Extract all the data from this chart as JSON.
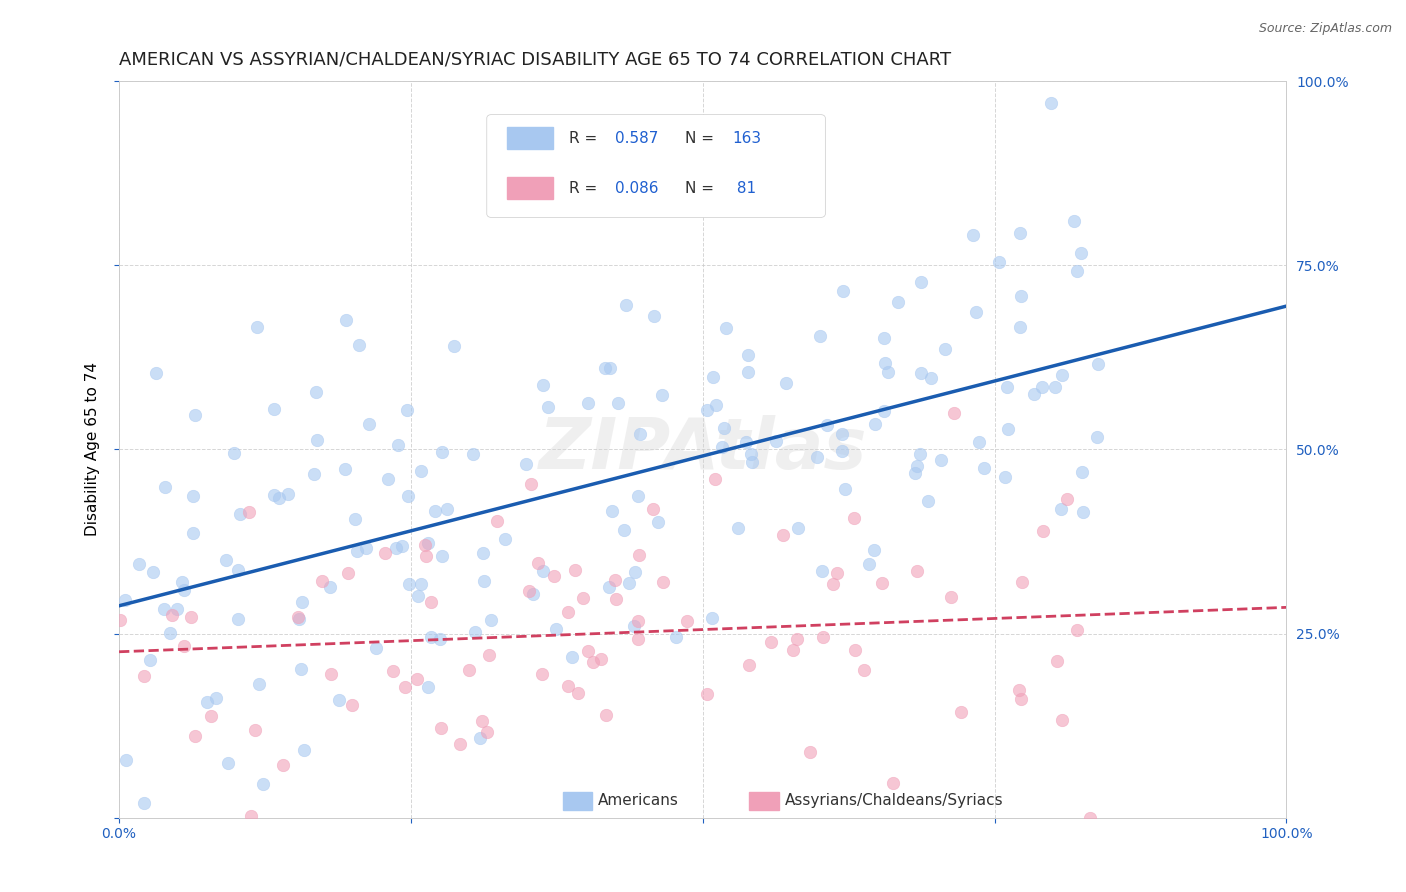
{
  "title": "AMERICAN VS ASSYRIAN/CHALDEAN/SYRIAC DISABILITY AGE 65 TO 74 CORRELATION CHART",
  "source": "Source: ZipAtlas.com",
  "xlabel": "",
  "ylabel": "Disability Age 65 to 74",
  "xlim": [
    0.0,
    1.0
  ],
  "ylim": [
    0.0,
    1.0
  ],
  "xticks": [
    0.0,
    0.25,
    0.5,
    0.75,
    1.0
  ],
  "xticklabels": [
    "0.0%",
    "",
    "",
    "",
    "100.0%"
  ],
  "yticks": [
    0.0,
    0.25,
    0.5,
    0.75,
    1.0
  ],
  "yticklabels": [
    "",
    "25.0%",
    "50.0%",
    "75.0%",
    "100.0%"
  ],
  "american_R": 0.587,
  "american_N": 163,
  "assyrian_R": 0.086,
  "assyrian_N": 81,
  "american_color": "#a8c8f0",
  "american_line_color": "#1a5cb0",
  "assyrian_color": "#f0a0b8",
  "assyrian_line_color": "#d04060",
  "legend_box_color": "#f8f8f8",
  "grid_color": "#cccccc",
  "watermark": "ZIPAtlas",
  "background_color": "#ffffff",
  "title_fontsize": 13,
  "label_fontsize": 11,
  "tick_fontsize": 10,
  "scatter_size": 80,
  "scatter_alpha": 0.6,
  "american_seed": 42,
  "assyrian_seed": 7
}
